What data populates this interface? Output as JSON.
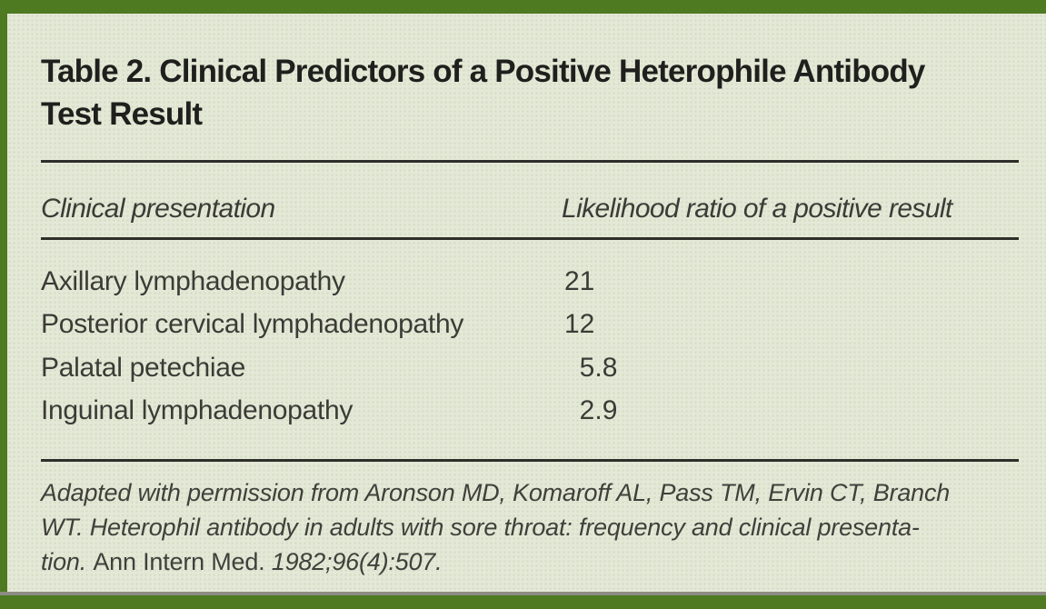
{
  "theme": {
    "bar_green": "#4e7a21",
    "panel_green": "#e4e8d6",
    "rule_color": "#2e2e2a",
    "title_color": "#1f1f1d",
    "body_text_color": "#3b3b37",
    "footnote_color": "#40403c",
    "gray_line_color": "#8c8c84"
  },
  "table": {
    "title": "Table 2. Clinical Predictors of a Positive Heterophile Antibody Test Result",
    "columns": [
      {
        "label": "Clinical presentation"
      },
      {
        "label": "Likelihood ratio of a positive result"
      }
    ],
    "rows": [
      {
        "label": "Axillary lymphadenopathy",
        "value": "21"
      },
      {
        "label": "Posterior cervical lymphadenopathy",
        "value": "12"
      },
      {
        "label": "Palatal petechiae",
        "value": "5.8"
      },
      {
        "label": "Inguinal lymphadenopathy",
        "value": "2.9"
      }
    ],
    "footnote": {
      "lines": [
        [
          {
            "text": "Adapted with permission from Aronson MD, Komaroff AL, Pass TM, Ervin CT, Branch",
            "style": "italic"
          }
        ],
        [
          {
            "text": "WT. Heterophil antibody in adults with sore throat: frequency and clinical presenta-",
            "style": "italic"
          }
        ],
        [
          {
            "text": "tion. ",
            "style": "italic"
          },
          {
            "text": "Ann Intern Med. ",
            "style": "roman"
          },
          {
            "text": "1982;96(4):507.",
            "style": "italic"
          }
        ]
      ]
    }
  }
}
